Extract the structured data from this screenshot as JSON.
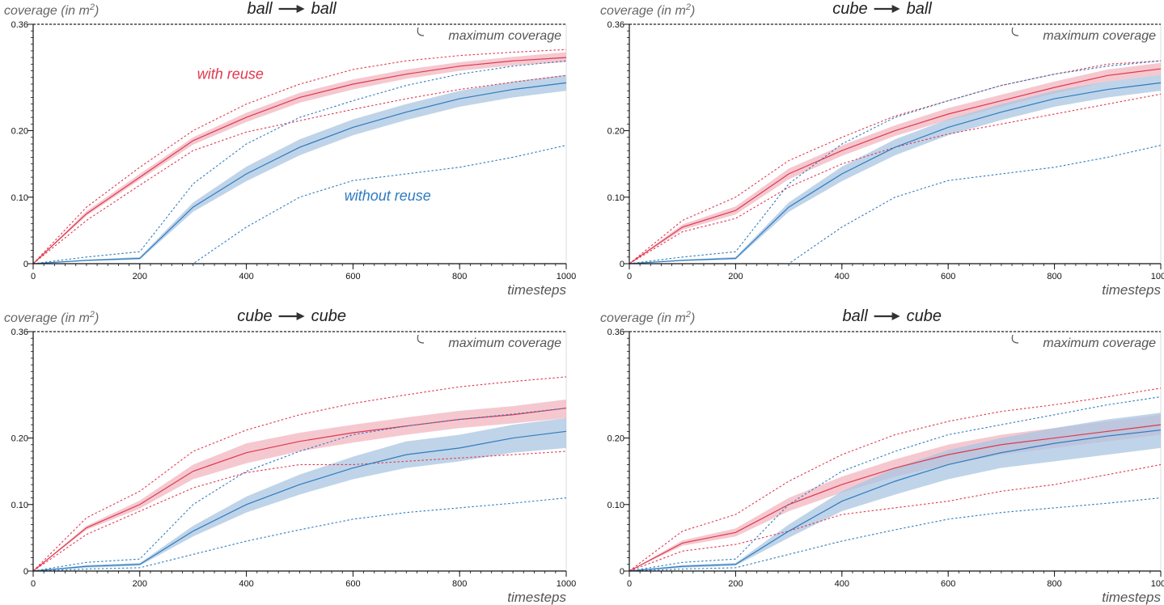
{
  "colors": {
    "reuse": "#e0384e",
    "reuse_band": "#f2b6c0",
    "noreuse": "#2e7bbf",
    "noreuse_band": "#a9c6e2",
    "axis": "#111111",
    "grid": "#dddddd"
  },
  "labels": {
    "with_reuse": "with reuse",
    "without_reuse": "without reuse"
  },
  "chart_data": [
    {
      "type": "line",
      "panel": "top-left",
      "title_from": "ball",
      "title_to": "ball",
      "ylabel_main": "coverage (in m",
      "ylabel_sup": "2",
      "ylabel_tail": ")",
      "xlabel": "timesteps",
      "ylim": [
        0,
        0.36
      ],
      "xlim": [
        0,
        1000
      ],
      "yticks": [
        0,
        0.1,
        0.2,
        0.36
      ],
      "ytick_labels": [
        "0",
        "0.10",
        "0.20",
        "0.36"
      ],
      "xticks": [
        0,
        200,
        400,
        600,
        800,
        1000
      ],
      "xtick_labels": [
        "0",
        "200",
        "400",
        "600",
        "800",
        "1000"
      ],
      "max_coverage": 0.36,
      "max_label": "maximum coverage",
      "show_series_labels": true,
      "x": [
        0,
        100,
        200,
        300,
        400,
        500,
        600,
        700,
        800,
        900,
        1000
      ],
      "series": [
        {
          "name": "with reuse",
          "mean": [
            0,
            0.075,
            0.13,
            0.185,
            0.22,
            0.25,
            0.27,
            0.285,
            0.297,
            0.305,
            0.31
          ],
          "lower": [
            0,
            0.072,
            0.126,
            0.179,
            0.213,
            0.242,
            0.262,
            0.278,
            0.29,
            0.298,
            0.303
          ],
          "upper": [
            0,
            0.079,
            0.135,
            0.19,
            0.227,
            0.257,
            0.277,
            0.292,
            0.303,
            0.311,
            0.318
          ],
          "min": [
            0,
            0.065,
            0.118,
            0.17,
            0.198,
            0.215,
            0.232,
            0.248,
            0.262,
            0.273,
            0.283
          ],
          "max": [
            0,
            0.085,
            0.145,
            0.2,
            0.24,
            0.27,
            0.292,
            0.305,
            0.313,
            0.318,
            0.322
          ]
        },
        {
          "name": "without reuse",
          "mean": [
            0,
            0.005,
            0.008,
            0.085,
            0.135,
            0.175,
            0.205,
            0.228,
            0.248,
            0.262,
            0.272
          ],
          "lower": [
            0,
            0.004,
            0.006,
            0.078,
            0.124,
            0.163,
            0.193,
            0.216,
            0.236,
            0.25,
            0.26
          ],
          "upper": [
            0,
            0.006,
            0.01,
            0.092,
            0.146,
            0.187,
            0.217,
            0.24,
            0.26,
            0.274,
            0.284
          ],
          "min": [
            0,
            0.0,
            0.0,
            0.0,
            0.055,
            0.1,
            0.125,
            0.135,
            0.145,
            0.16,
            0.178
          ],
          "max": [
            0,
            0.01,
            0.018,
            0.12,
            0.18,
            0.22,
            0.245,
            0.268,
            0.285,
            0.297,
            0.305
          ]
        }
      ]
    },
    {
      "type": "line",
      "panel": "top-right",
      "title_from": "cube",
      "title_to": "ball",
      "ylabel_main": "coverage (in m",
      "ylabel_sup": "2",
      "ylabel_tail": ")",
      "xlabel": "timesteps",
      "ylim": [
        0,
        0.36
      ],
      "xlim": [
        0,
        1000
      ],
      "yticks": [
        0,
        0.1,
        0.2,
        0.36
      ],
      "ytick_labels": [
        "0",
        "0.10",
        "0.20",
        "0.36"
      ],
      "xticks": [
        0,
        200,
        400,
        600,
        800,
        1000
      ],
      "xtick_labels": [
        "0",
        "200",
        "400",
        "600",
        "800",
        "1000"
      ],
      "max_coverage": 0.36,
      "max_label": "maximum coverage",
      "show_series_labels": false,
      "x": [
        0,
        100,
        200,
        300,
        400,
        500,
        600,
        700,
        800,
        900,
        1000
      ],
      "series": [
        {
          "name": "with reuse",
          "mean": [
            0,
            0.055,
            0.08,
            0.135,
            0.17,
            0.2,
            0.225,
            0.245,
            0.265,
            0.283,
            0.293
          ],
          "lower": [
            0,
            0.051,
            0.074,
            0.127,
            0.162,
            0.192,
            0.216,
            0.236,
            0.256,
            0.274,
            0.284
          ],
          "upper": [
            0,
            0.059,
            0.086,
            0.143,
            0.178,
            0.208,
            0.234,
            0.254,
            0.274,
            0.292,
            0.302
          ],
          "min": [
            0,
            0.048,
            0.068,
            0.115,
            0.15,
            0.175,
            0.195,
            0.21,
            0.225,
            0.24,
            0.255
          ],
          "max": [
            0,
            0.065,
            0.1,
            0.155,
            0.19,
            0.222,
            0.245,
            0.268,
            0.285,
            0.3,
            0.305
          ]
        },
        {
          "name": "without reuse",
          "mean": [
            0,
            0.005,
            0.008,
            0.085,
            0.135,
            0.175,
            0.205,
            0.228,
            0.248,
            0.262,
            0.272
          ],
          "lower": [
            0,
            0.004,
            0.006,
            0.078,
            0.124,
            0.163,
            0.193,
            0.216,
            0.236,
            0.25,
            0.26
          ],
          "upper": [
            0,
            0.006,
            0.01,
            0.092,
            0.146,
            0.187,
            0.217,
            0.24,
            0.26,
            0.274,
            0.284
          ],
          "min": [
            0,
            0.0,
            0.0,
            0.0,
            0.055,
            0.1,
            0.125,
            0.135,
            0.145,
            0.16,
            0.178
          ],
          "max": [
            0,
            0.01,
            0.018,
            0.12,
            0.18,
            0.22,
            0.245,
            0.268,
            0.285,
            0.297,
            0.305
          ]
        }
      ]
    },
    {
      "type": "line",
      "panel": "bottom-left",
      "title_from": "cube",
      "title_to": "cube",
      "ylabel_main": "coverage (in m",
      "ylabel_sup": "2",
      "ylabel_tail": ")",
      "xlabel": "timesteps",
      "ylim": [
        0,
        0.36
      ],
      "xlim": [
        0,
        1000
      ],
      "yticks": [
        0,
        0.1,
        0.2,
        0.36
      ],
      "ytick_labels": [
        "0",
        "0.10",
        "0.20",
        "0.36"
      ],
      "xticks": [
        0,
        200,
        400,
        600,
        800,
        1000
      ],
      "xtick_labels": [
        "0",
        "200",
        "400",
        "600",
        "800",
        "1000"
      ],
      "max_coverage": 0.36,
      "max_label": "maximum coverage",
      "show_series_labels": false,
      "x": [
        0,
        100,
        200,
        300,
        400,
        500,
        600,
        700,
        800,
        900,
        1000
      ],
      "series": [
        {
          "name": "with reuse",
          "mean": [
            0,
            0.065,
            0.1,
            0.15,
            0.178,
            0.195,
            0.208,
            0.218,
            0.228,
            0.235,
            0.245
          ],
          "lower": [
            0,
            0.062,
            0.094,
            0.138,
            0.162,
            0.18,
            0.193,
            0.205,
            0.215,
            0.222,
            0.23
          ],
          "upper": [
            0,
            0.068,
            0.106,
            0.16,
            0.192,
            0.208,
            0.22,
            0.231,
            0.241,
            0.248,
            0.258
          ],
          "min": [
            0,
            0.055,
            0.09,
            0.125,
            0.148,
            0.16,
            0.16,
            0.165,
            0.17,
            0.175,
            0.18
          ],
          "max": [
            0,
            0.08,
            0.12,
            0.18,
            0.212,
            0.235,
            0.252,
            0.265,
            0.277,
            0.285,
            0.292
          ]
        },
        {
          "name": "without reuse",
          "mean": [
            0,
            0.007,
            0.01,
            0.06,
            0.1,
            0.13,
            0.155,
            0.175,
            0.185,
            0.2,
            0.21
          ],
          "lower": [
            0,
            0.005,
            0.008,
            0.052,
            0.088,
            0.115,
            0.138,
            0.155,
            0.165,
            0.178,
            0.185
          ],
          "upper": [
            0,
            0.009,
            0.012,
            0.068,
            0.112,
            0.145,
            0.172,
            0.195,
            0.205,
            0.22,
            0.23
          ],
          "min": [
            0,
            0.003,
            0.005,
            0.025,
            0.045,
            0.062,
            0.078,
            0.088,
            0.095,
            0.102,
            0.11
          ],
          "max": [
            0,
            0.013,
            0.018,
            0.1,
            0.15,
            0.18,
            0.205,
            0.218,
            0.228,
            0.236,
            0.245
          ]
        }
      ]
    },
    {
      "type": "line",
      "panel": "bottom-right",
      "title_from": "ball",
      "title_to": "cube",
      "ylabel_main": "coverage (in m",
      "ylabel_sup": "2",
      "ylabel_tail": ")",
      "xlabel": "timesteps",
      "ylim": [
        0,
        0.36
      ],
      "xlim": [
        0,
        1000
      ],
      "yticks": [
        0,
        0.1,
        0.2,
        0.36
      ],
      "ytick_labels": [
        "0",
        "0.10",
        "0.20",
        "0.36"
      ],
      "xticks": [
        0,
        200,
        400,
        600,
        800,
        1000
      ],
      "xtick_labels": [
        "0",
        "200",
        "400",
        "600",
        "800",
        "1000"
      ],
      "max_coverage": 0.36,
      "max_label": "maximum coverage",
      "show_series_labels": false,
      "x": [
        0,
        100,
        200,
        300,
        400,
        500,
        600,
        700,
        800,
        900,
        1000
      ],
      "series": [
        {
          "name": "with reuse",
          "mean": [
            0,
            0.042,
            0.058,
            0.1,
            0.13,
            0.155,
            0.175,
            0.19,
            0.2,
            0.21,
            0.22
          ],
          "lower": [
            0,
            0.038,
            0.052,
            0.09,
            0.118,
            0.142,
            0.16,
            0.175,
            0.185,
            0.195,
            0.205
          ],
          "upper": [
            0,
            0.046,
            0.064,
            0.11,
            0.142,
            0.168,
            0.19,
            0.205,
            0.215,
            0.225,
            0.235
          ],
          "min": [
            0,
            0.03,
            0.04,
            0.06,
            0.085,
            0.095,
            0.105,
            0.12,
            0.13,
            0.145,
            0.16
          ],
          "max": [
            0,
            0.06,
            0.085,
            0.135,
            0.175,
            0.205,
            0.225,
            0.24,
            0.25,
            0.262,
            0.275
          ]
        },
        {
          "name": "without reuse",
          "mean": [
            0,
            0.007,
            0.01,
            0.06,
            0.105,
            0.135,
            0.16,
            0.178,
            0.192,
            0.203,
            0.212
          ],
          "lower": [
            0,
            0.005,
            0.008,
            0.05,
            0.09,
            0.115,
            0.138,
            0.155,
            0.165,
            0.175,
            0.185
          ],
          "upper": [
            0,
            0.009,
            0.012,
            0.07,
            0.12,
            0.155,
            0.182,
            0.2,
            0.215,
            0.228,
            0.238
          ],
          "min": [
            0,
            0.003,
            0.005,
            0.025,
            0.045,
            0.062,
            0.078,
            0.088,
            0.095,
            0.102,
            0.11
          ],
          "max": [
            0,
            0.013,
            0.018,
            0.1,
            0.15,
            0.18,
            0.205,
            0.22,
            0.235,
            0.25,
            0.262
          ]
        }
      ]
    }
  ]
}
